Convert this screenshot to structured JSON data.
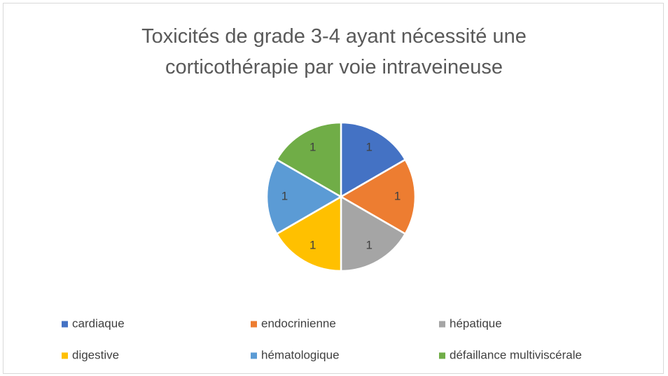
{
  "chart_data": {
    "type": "pie",
    "title": "Toxicités de grade 3-4 ayant nécessité une corticothérapie par voie intraveineuse",
    "categories": [
      "cardiaque",
      "endocrinienne",
      "hépatique",
      "digestive",
      "hématologique",
      "défaillance multiviscérale"
    ],
    "values": [
      1,
      1,
      1,
      1,
      1,
      1
    ],
    "colors": [
      "#4472c4",
      "#ed7d31",
      "#a5a5a5",
      "#ffc000",
      "#5b9bd5",
      "#70ad47"
    ],
    "legend": "bottom"
  }
}
